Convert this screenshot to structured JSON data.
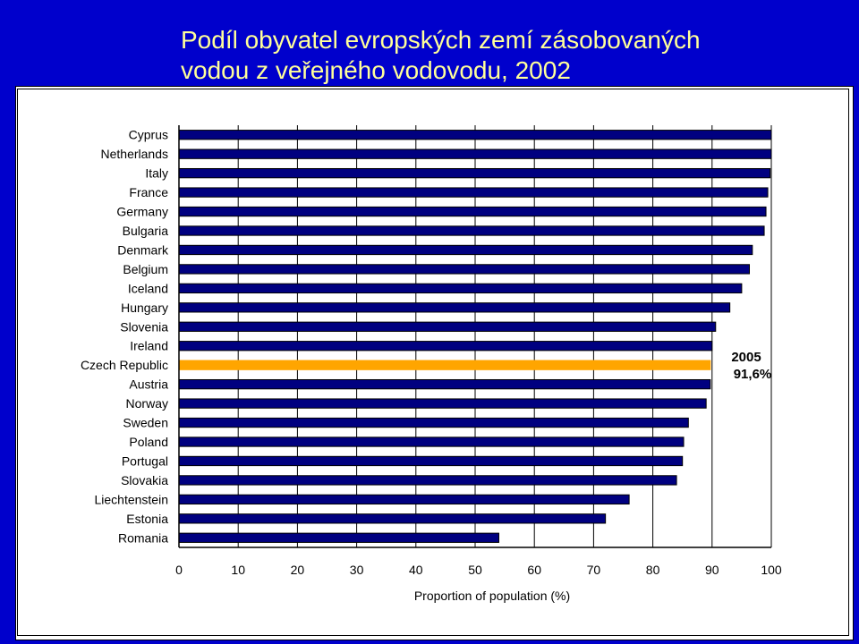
{
  "title_line1": "Podíl obyvatel evropských zemí zásobovaných",
  "title_line2": "vodou z veřejného vodovodu, 2002",
  "colors": {
    "background": "#0000cc",
    "title": "#ffff99",
    "bar": "#000080",
    "highlight": "#ffa500"
  },
  "annotation": {
    "line1": "2005",
    "line2": "91,6%"
  },
  "chart_data": {
    "type": "bar",
    "orientation": "horizontal",
    "categories": [
      "Cyprus",
      "Netherlands",
      "Italy",
      "France",
      "Germany",
      "Bulgaria",
      "Denmark",
      "Belgium",
      "Iceland",
      "Hungary",
      "Slovenia",
      "Ireland",
      "Czech Republic",
      "Austria",
      "Norway",
      "Sweden",
      "Poland",
      "Portugal",
      "Slovakia",
      "Liechtenstein",
      "Estonia",
      "Romania"
    ],
    "values": [
      100,
      100,
      99.8,
      99.4,
      99.1,
      98.8,
      96.8,
      96.3,
      95.0,
      93.0,
      90.6,
      90.0,
      89.7,
      89.7,
      89.0,
      86.0,
      85.2,
      85.0,
      84.0,
      76.0,
      72.0,
      54.0
    ],
    "highlight_category": "Czech Republic",
    "xlabel": "Proportion of population (%)",
    "ylabel": "",
    "xlim": [
      0,
      100
    ],
    "xticks": [
      0,
      10,
      20,
      30,
      40,
      50,
      60,
      70,
      80,
      90,
      100
    ],
    "grid": true
  }
}
